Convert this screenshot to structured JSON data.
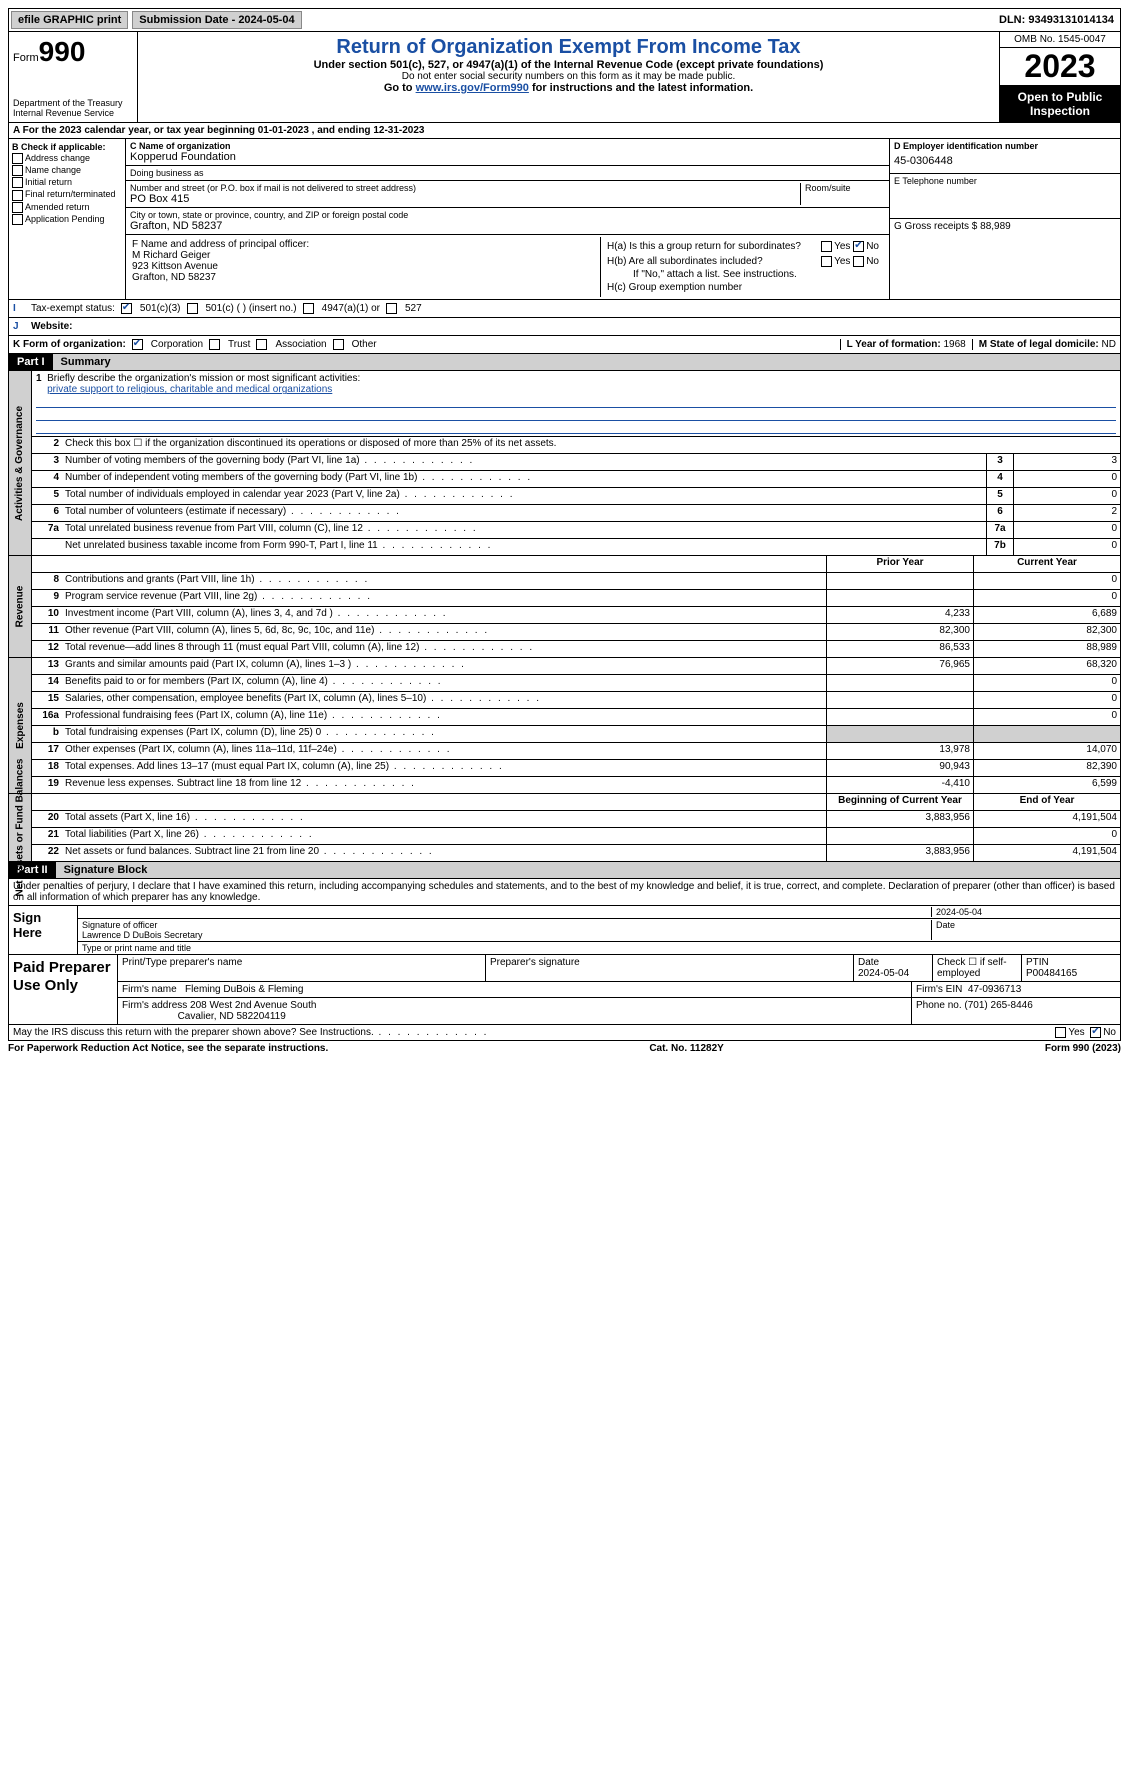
{
  "topbar": {
    "efile": "efile GRAPHIC print",
    "submission": "Submission Date - 2024-05-04",
    "dln": "DLN: 93493131014134"
  },
  "header": {
    "form_prefix": "Form",
    "form_num": "990",
    "dept": "Department of the Treasury Internal Revenue Service",
    "title": "Return of Organization Exempt From Income Tax",
    "subtitle": "Under section 501(c), 527, or 4947(a)(1) of the Internal Revenue Code (except private foundations)",
    "note": "Do not enter social security numbers on this form as it may be made public.",
    "goto_prefix": "Go to ",
    "goto_link": "www.irs.gov/Form990",
    "goto_suffix": " for instructions and the latest information.",
    "omb": "OMB No. 1545-0047",
    "year": "2023",
    "open_pub": "Open to Public Inspection"
  },
  "sectionA": "A For the 2023 calendar year, or tax year beginning 01-01-2023   , and ending 12-31-2023",
  "colB": {
    "label": "B Check if applicable:",
    "items": [
      "Address change",
      "Name change",
      "Initial return",
      "Final return/terminated",
      "Amended return",
      "Application Pending"
    ]
  },
  "colC": {
    "name_label": "C Name of organization",
    "name": "Kopperud Foundation",
    "dba_label": "Doing business as",
    "dba": "",
    "addr_label": "Number and street (or P.O. box if mail is not delivered to street address)",
    "room_label": "Room/suite",
    "addr": "PO Box 415",
    "city_label": "City or town, state or province, country, and ZIP or foreign postal code",
    "city": "Grafton, ND  58237"
  },
  "colD": {
    "ein_label": "D Employer identification number",
    "ein": "45-0306448",
    "phone_label": "E Telephone number",
    "phone": "",
    "receipts_label": "G Gross receipts $ ",
    "receipts": "88,989"
  },
  "colF": {
    "label": "F  Name and address of principal officer:",
    "name": "M Richard Geiger",
    "addr1": "923 Kittson Avenue",
    "addr2": "Grafton, ND  58237"
  },
  "colH": {
    "ha": "H(a)  Is this a group return for subordinates?",
    "hb": "H(b)  Are all subordinates included?",
    "hb_note": "If \"No,\" attach a list. See instructions.",
    "hc": "H(c)  Group exemption number",
    "yes": "Yes",
    "no": "No"
  },
  "taxrow": {
    "label": "Tax-exempt status:",
    "opt1": "501(c)(3)",
    "opt2": "501(c) (  ) (insert no.)",
    "opt3": "4947(a)(1) or",
    "opt4": "527"
  },
  "website_label": "Website:",
  "formorg": {
    "label": "K Form of organization:",
    "opts": [
      "Corporation",
      "Trust",
      "Association",
      "Other"
    ],
    "year_label": "L Year of formation: ",
    "year": "1968",
    "state_label": "M State of legal domicile: ",
    "state": "ND"
  },
  "part1": {
    "tag": "Part I",
    "title": "Summary"
  },
  "mission": {
    "label": "Briefly describe the organization's mission or most significant activities:",
    "text": "private support to religious, charitable and medical organizations"
  },
  "gov": {
    "title": "Activities & Governance",
    "rows": [
      {
        "n": "2",
        "d": "Check this box ☐ if the organization discontinued its operations or disposed of more than 25% of its net assets."
      },
      {
        "n": "3",
        "d": "Number of voting members of the governing body (Part VI, line 1a)",
        "an": "3",
        "av": "3"
      },
      {
        "n": "4",
        "d": "Number of independent voting members of the governing body (Part VI, line 1b)",
        "an": "4",
        "av": "0"
      },
      {
        "n": "5",
        "d": "Total number of individuals employed in calendar year 2023 (Part V, line 2a)",
        "an": "5",
        "av": "0"
      },
      {
        "n": "6",
        "d": "Total number of volunteers (estimate if necessary)",
        "an": "6",
        "av": "2"
      },
      {
        "n": "7a",
        "d": "Total unrelated business revenue from Part VIII, column (C), line 12",
        "an": "7a",
        "av": "0"
      },
      {
        "n": "",
        "d": "Net unrelated business taxable income from Form 990-T, Part I, line 11",
        "an": "7b",
        "av": "0"
      }
    ]
  },
  "revenue": {
    "title": "Revenue",
    "header_prior": "Prior Year",
    "header_curr": "Current Year",
    "rows": [
      {
        "n": "8",
        "d": "Contributions and grants (Part VIII, line 1h)",
        "p": "",
        "c": "0"
      },
      {
        "n": "9",
        "d": "Program service revenue (Part VIII, line 2g)",
        "p": "",
        "c": "0"
      },
      {
        "n": "10",
        "d": "Investment income (Part VIII, column (A), lines 3, 4, and 7d )",
        "p": "4,233",
        "c": "6,689"
      },
      {
        "n": "11",
        "d": "Other revenue (Part VIII, column (A), lines 5, 6d, 8c, 9c, 10c, and 11e)",
        "p": "82,300",
        "c": "82,300"
      },
      {
        "n": "12",
        "d": "Total revenue—add lines 8 through 11 (must equal Part VIII, column (A), line 12)",
        "p": "86,533",
        "c": "88,989"
      }
    ]
  },
  "expenses": {
    "title": "Expenses",
    "rows": [
      {
        "n": "13",
        "d": "Grants and similar amounts paid (Part IX, column (A), lines 1–3 )",
        "p": "76,965",
        "c": "68,320"
      },
      {
        "n": "14",
        "d": "Benefits paid to or for members (Part IX, column (A), line 4)",
        "p": "",
        "c": "0"
      },
      {
        "n": "15",
        "d": "Salaries, other compensation, employee benefits (Part IX, column (A), lines 5–10)",
        "p": "",
        "c": "0"
      },
      {
        "n": "16a",
        "d": "Professional fundraising fees (Part IX, column (A), line 11e)",
        "p": "",
        "c": "0"
      },
      {
        "n": "b",
        "d": "Total fundraising expenses (Part IX, column (D), line 25) 0",
        "p": "GREY",
        "c": "GREY"
      },
      {
        "n": "17",
        "d": "Other expenses (Part IX, column (A), lines 11a–11d, 11f–24e)",
        "p": "13,978",
        "c": "14,070"
      },
      {
        "n": "18",
        "d": "Total expenses. Add lines 13–17 (must equal Part IX, column (A), line 25)",
        "p": "90,943",
        "c": "82,390"
      },
      {
        "n": "19",
        "d": "Revenue less expenses. Subtract line 18 from line 12",
        "p": "-4,410",
        "c": "6,599"
      }
    ]
  },
  "netassets": {
    "title": "Net Assets or Fund Balances",
    "header_prior": "Beginning of Current Year",
    "header_curr": "End of Year",
    "rows": [
      {
        "n": "20",
        "d": "Total assets (Part X, line 16)",
        "p": "3,883,956",
        "c": "4,191,504"
      },
      {
        "n": "21",
        "d": "Total liabilities (Part X, line 26)",
        "p": "",
        "c": "0"
      },
      {
        "n": "22",
        "d": "Net assets or fund balances. Subtract line 21 from line 20",
        "p": "3,883,956",
        "c": "4,191,504"
      }
    ]
  },
  "part2": {
    "tag": "Part II",
    "title": "Signature Block"
  },
  "penalty": "Under penalties of perjury, I declare that I have examined this return, including accompanying schedules and statements, and to the best of my knowledge and belief, it is true, correct, and complete. Declaration of preparer (other than officer) is based on all information of which preparer has any knowledge.",
  "sign": {
    "label": "Sign Here",
    "date": "2024-05-04",
    "sig_label": "Signature of officer",
    "officer": "Lawrence D DuBois  Secretary",
    "type_label": "Type or print name and title",
    "date_label": "Date"
  },
  "prep": {
    "label": "Paid Preparer Use Only",
    "h1": "Print/Type preparer's name",
    "h2": "Preparer's signature",
    "h3": "Date",
    "date": "2024-05-04",
    "h4": "Check ☐ if self-employed",
    "h5": "PTIN",
    "ptin": "P00484165",
    "firm_label": "Firm's name",
    "firm": "Fleming DuBois & Fleming",
    "ein_label": "Firm's EIN",
    "ein": "47-0936713",
    "addr_label": "Firm's address",
    "addr1": "208 West 2nd Avenue South",
    "addr2": "Cavalier, ND  582204119",
    "phone_label": "Phone no.",
    "phone": "(701) 265-8446"
  },
  "discuss": "May the IRS discuss this return with the preparer shown above? See Instructions.",
  "footer": {
    "left": "For Paperwork Reduction Act Notice, see the separate instructions.",
    "mid": "Cat. No. 11282Y",
    "right": "Form 990 (2023)"
  }
}
